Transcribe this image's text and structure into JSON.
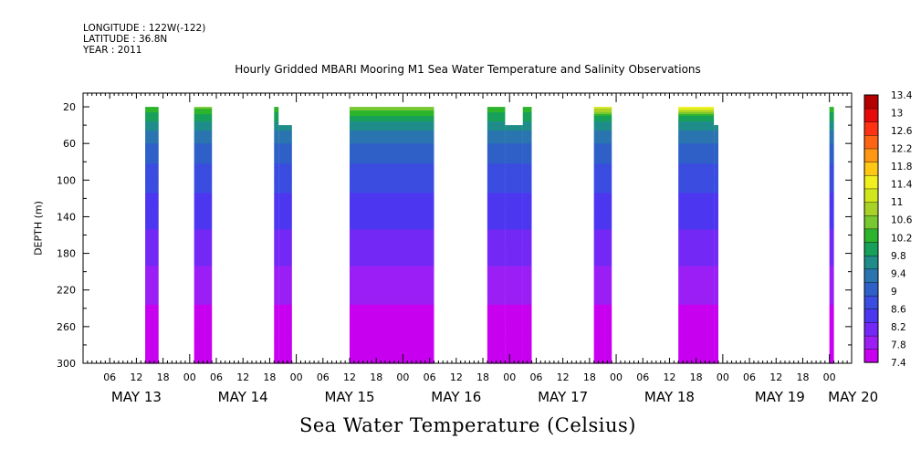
{
  "header": {
    "longitude": "LONGITUDE : 122W(-122)",
    "latitude": "LATITUDE : 36.8N",
    "year": "YEAR : 2011"
  },
  "chart_data": {
    "type": "heatmap",
    "title": "Hourly Gridded MBARI Mooring M1 Sea Water Temperature and Salinity Observations",
    "xlabel": "Sea Water Temperature (Celsius)",
    "ylabel": "DEPTH (m)",
    "x_hour_ticks": [
      "06",
      "12",
      "18",
      "00",
      "06",
      "12",
      "18",
      "00",
      "06",
      "12",
      "18",
      "00",
      "06",
      "12",
      "18",
      "00",
      "06",
      "12",
      "18",
      "00",
      "06",
      "12",
      "18",
      "00",
      "06",
      "12",
      "18",
      "00"
    ],
    "x_day_labels": [
      "MAY 13",
      "MAY 14",
      "MAY 15",
      "MAY 16",
      "MAY 17",
      "MAY 18",
      "MAY 19",
      "MAY 20"
    ],
    "xlim_hours_from_may13": [
      0,
      173
    ],
    "y_ticks": [
      20,
      60,
      100,
      140,
      180,
      220,
      260,
      300
    ],
    "ylim": [
      300,
      5
    ],
    "colorbar": {
      "levels": [
        7.4,
        7.8,
        8.2,
        8.6,
        9,
        9.4,
        9.8,
        10.2,
        10.6,
        11,
        11.4,
        11.8,
        12.2,
        12.6,
        13,
        13.4
      ],
      "labels": [
        "13.4",
        "13",
        "12.6",
        "12.2",
        "11.8",
        "11.4",
        "11",
        "10.6",
        "10.2",
        "9.8",
        "9.4",
        "9",
        "8.6",
        "8.2",
        "7.8",
        "7.4"
      ],
      "colors": [
        "#c800f0",
        "#9b1ff5",
        "#7428f5",
        "#4d36f0",
        "#3a4de0",
        "#2e60c8",
        "#2a75b0",
        "#1f8c8a",
        "#17a05a",
        "#2db42d",
        "#78c832",
        "#a8d228",
        "#d2e61e",
        "#f0f01e",
        "#ffc814",
        "#ff9614",
        "#ff6414",
        "#ff3214",
        "#e60a0a",
        "#b40000"
      ]
    },
    "segments": [
      {
        "start_hour": 14,
        "end_hour": 17,
        "top_depth": 20,
        "top_temp": 10.2
      },
      {
        "start_hour": 25,
        "end_hour": 29,
        "top_depth": 20,
        "top_temp": 10.4
      },
      {
        "start_hour": 43,
        "end_hour": 44,
        "top_depth": 20,
        "top_temp": 10.2
      },
      {
        "start_hour": 44,
        "end_hour": 47,
        "top_depth": 40,
        "top_temp": 9.6
      },
      {
        "start_hour": 60,
        "end_hour": 79,
        "top_depth": 20,
        "top_temp": 10.6
      },
      {
        "start_hour": 91,
        "end_hour": 95,
        "top_depth": 20,
        "top_temp": 10.2
      },
      {
        "start_hour": 95,
        "end_hour": 99,
        "top_depth": 40,
        "top_temp": 9.6
      },
      {
        "start_hour": 99,
        "end_hour": 101,
        "top_depth": 20,
        "top_temp": 10.2
      },
      {
        "start_hour": 115,
        "end_hour": 119,
        "top_depth": 20,
        "top_temp": 11.2
      },
      {
        "start_hour": 134,
        "end_hour": 142,
        "top_depth": 20,
        "top_temp": 11.6
      },
      {
        "start_hour": 142,
        "end_hour": 143,
        "top_depth": 40,
        "top_temp": 9.6
      },
      {
        "start_hour": 168,
        "end_hour": 169,
        "top_depth": 20,
        "top_temp": 10.2
      }
    ],
    "profile": [
      {
        "depth": 20,
        "temp": 10.4
      },
      {
        "depth": 40,
        "temp": 9.6
      },
      {
        "depth": 60,
        "temp": 9.2
      },
      {
        "depth": 80,
        "temp": 8.9
      },
      {
        "depth": 100,
        "temp": 8.7
      },
      {
        "depth": 140,
        "temp": 8.4
      },
      {
        "depth": 180,
        "temp": 8.1
      },
      {
        "depth": 220,
        "temp": 7.8
      },
      {
        "depth": 260,
        "temp": 7.55
      },
      {
        "depth": 300,
        "temp": 7.4
      }
    ],
    "grid": false,
    "legend": "colorbar-right"
  }
}
